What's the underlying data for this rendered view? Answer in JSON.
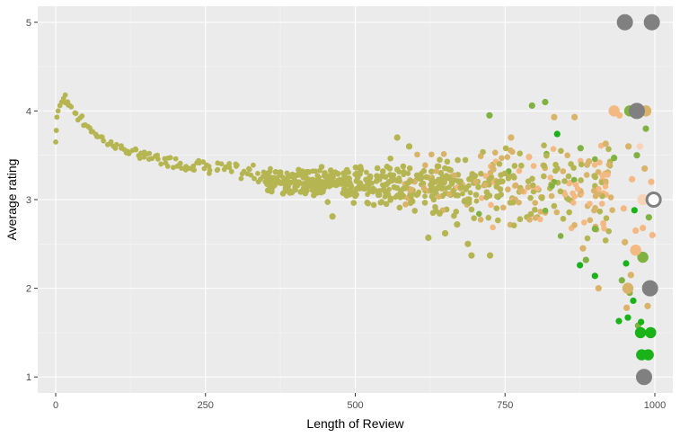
{
  "chart_data": {
    "type": "scatter",
    "title": "",
    "xlabel": "Length of Review",
    "ylabel": "Average rating",
    "xlim": [
      -30,
      1030
    ],
    "ylim": [
      0.82,
      5.18
    ],
    "x_ticks": [
      0,
      250,
      500,
      750,
      1000
    ],
    "x_tick_labels": [
      "0",
      "250",
      "500",
      "750",
      "1000"
    ],
    "y_ticks": [
      1,
      2,
      3,
      4,
      5
    ],
    "y_tick_labels": [
      "1",
      "2",
      "3",
      "4",
      "5"
    ],
    "grid": true,
    "legend": "none",
    "colors": {
      "panel_background": "#ebebeb",
      "grid_major": "#ffffff",
      "olive": "#b5b552",
      "tan": "#d9b368",
      "peach": "#f4b982",
      "light_peach": "#f8d3b7",
      "green": "#19b219",
      "mid_green": "#7fb240",
      "grey": "#808080"
    },
    "trend_points": [
      [
        0,
        3.65
      ],
      [
        1,
        3.78
      ],
      [
        2,
        3.93
      ],
      [
        4,
        4.0
      ],
      [
        7,
        4.06
      ],
      [
        10,
        4.1
      ],
      [
        13,
        4.14
      ],
      [
        16,
        4.18
      ],
      [
        20,
        4.1
      ],
      [
        25,
        4.05
      ],
      [
        32,
        3.99
      ],
      [
        40,
        3.92
      ],
      [
        50,
        3.84
      ],
      [
        60,
        3.78
      ],
      [
        70,
        3.72
      ],
      [
        80,
        3.68
      ],
      [
        90,
        3.64
      ],
      [
        100,
        3.61
      ],
      [
        110,
        3.58
      ],
      [
        120,
        3.55
      ],
      [
        130,
        3.53
      ],
      [
        140,
        3.51
      ],
      [
        150,
        3.49
      ],
      [
        160,
        3.47
      ],
      [
        170,
        3.46
      ],
      [
        180,
        3.44
      ],
      [
        190,
        3.43
      ],
      [
        200,
        3.42
      ],
      [
        210,
        3.41
      ],
      [
        220,
        3.4
      ],
      [
        230,
        3.39
      ],
      [
        240,
        3.38
      ],
      [
        250,
        3.37
      ],
      [
        260,
        3.36
      ],
      [
        270,
        3.35
      ],
      [
        280,
        3.34
      ],
      [
        290,
        3.33
      ],
      [
        300,
        3.32
      ],
      [
        310,
        3.31
      ],
      [
        320,
        3.3
      ],
      [
        330,
        3.3
      ],
      [
        340,
        3.29
      ],
      [
        350,
        3.28
      ],
      [
        360,
        3.27
      ],
      [
        370,
        3.26
      ],
      [
        380,
        3.25
      ],
      [
        390,
        3.25
      ],
      [
        400,
        3.24
      ],
      [
        410,
        3.23
      ],
      [
        420,
        3.23
      ],
      [
        430,
        3.22
      ],
      [
        440,
        3.22
      ],
      [
        450,
        3.21
      ],
      [
        460,
        3.21
      ],
      [
        470,
        3.2
      ],
      [
        480,
        3.2
      ],
      [
        490,
        3.2
      ],
      [
        500,
        3.19
      ],
      [
        510,
        3.19
      ],
      [
        520,
        3.18
      ],
      [
        530,
        3.18
      ],
      [
        540,
        3.18
      ],
      [
        550,
        3.17
      ],
      [
        560,
        3.17
      ],
      [
        570,
        3.17
      ],
      [
        580,
        3.16
      ],
      [
        590,
        3.16
      ],
      [
        600,
        3.16
      ],
      [
        610,
        3.16
      ],
      [
        620,
        3.15
      ],
      [
        630,
        3.15
      ],
      [
        640,
        3.15
      ],
      [
        650,
        3.15
      ],
      [
        660,
        3.14
      ],
      [
        670,
        3.14
      ],
      [
        680,
        3.14
      ],
      [
        690,
        3.14
      ],
      [
        700,
        3.13
      ]
    ],
    "points": [
      {
        "x": 462,
        "y": 2.81,
        "c": "olive",
        "s": 1
      },
      {
        "x": 590,
        "y": 3.6,
        "c": "olive",
        "s": 1
      },
      {
        "x": 570,
        "y": 3.7,
        "c": "olive",
        "s": 1
      },
      {
        "x": 622,
        "y": 2.57,
        "c": "olive",
        "s": 1
      },
      {
        "x": 650,
        "y": 2.62,
        "c": "olive",
        "s": 1
      },
      {
        "x": 670,
        "y": 2.72,
        "c": "olive",
        "s": 1
      },
      {
        "x": 688,
        "y": 2.5,
        "c": "olive",
        "s": 1
      },
      {
        "x": 694,
        "y": 2.37,
        "c": "olive",
        "s": 1
      },
      {
        "x": 725,
        "y": 2.37,
        "c": "olive",
        "s": 1
      },
      {
        "x": 724,
        "y": 3.95,
        "c": "mid_green",
        "s": 1
      },
      {
        "x": 760,
        "y": 3.7,
        "c": "tan",
        "s": 1
      },
      {
        "x": 777,
        "y": 3.1,
        "c": "tan",
        "s": 1
      },
      {
        "x": 790,
        "y": 3.48,
        "c": "peach",
        "s": 1
      },
      {
        "x": 795,
        "y": 4.06,
        "c": "mid_green",
        "s": 1
      },
      {
        "x": 817,
        "y": 4.1,
        "c": "mid_green",
        "s": 1
      },
      {
        "x": 832,
        "y": 3.93,
        "c": "tan",
        "s": 1
      },
      {
        "x": 837,
        "y": 3.74,
        "c": "green",
        "s": 1
      },
      {
        "x": 866,
        "y": 3.93,
        "c": "tan",
        "s": 1
      },
      {
        "x": 876,
        "y": 3.58,
        "c": "mid_green",
        "s": 1
      },
      {
        "x": 890,
        "y": 3.43,
        "c": "tan",
        "s": 1
      },
      {
        "x": 880,
        "y": 2.45,
        "c": "tan",
        "s": 1
      },
      {
        "x": 885,
        "y": 2.32,
        "c": "mid_green",
        "s": 1
      },
      {
        "x": 875,
        "y": 2.26,
        "c": "green",
        "s": 1
      },
      {
        "x": 900,
        "y": 2.14,
        "c": "green",
        "s": 1
      },
      {
        "x": 906,
        "y": 2.0,
        "c": "tan",
        "s": 1
      },
      {
        "x": 900,
        "y": 2.67,
        "c": "mid_green",
        "s": 1
      },
      {
        "x": 913,
        "y": 3.27,
        "c": "peach",
        "s": 1
      },
      {
        "x": 918,
        "y": 3.63,
        "c": "tan",
        "s": 1
      },
      {
        "x": 932,
        "y": 3.47,
        "c": "mid_green",
        "s": 1
      },
      {
        "x": 940,
        "y": 1.63,
        "c": "green",
        "s": 1
      },
      {
        "x": 941,
        "y": 3.95,
        "c": "peach",
        "s": 1
      },
      {
        "x": 945,
        "y": 2.09,
        "c": "mid_green",
        "s": 1
      },
      {
        "x": 948,
        "y": 2.9,
        "c": "peach",
        "s": 1
      },
      {
        "x": 950,
        "y": 2.52,
        "c": "tan",
        "s": 1
      },
      {
        "x": 952,
        "y": 2.28,
        "c": "green",
        "s": 1
      },
      {
        "x": 953,
        "y": 1.78,
        "c": "tan",
        "s": 1
      },
      {
        "x": 955,
        "y": 1.67,
        "c": "green",
        "s": 1
      },
      {
        "x": 956,
        "y": 3.6,
        "c": "tan",
        "s": 1
      },
      {
        "x": 958,
        "y": 1.95,
        "c": "mid_green",
        "s": 1
      },
      {
        "x": 960,
        "y": 2.15,
        "c": "tan",
        "s": 1
      },
      {
        "x": 962,
        "y": 3.23,
        "c": "peach",
        "s": 1
      },
      {
        "x": 964,
        "y": 1.86,
        "c": "green",
        "s": 1
      },
      {
        "x": 966,
        "y": 2.88,
        "c": "green",
        "s": 1
      },
      {
        "x": 968,
        "y": 2.65,
        "c": "peach",
        "s": 1
      },
      {
        "x": 970,
        "y": 3.5,
        "c": "mid_green",
        "s": 1
      },
      {
        "x": 972,
        "y": 1.58,
        "c": "mid_green",
        "s": 1
      },
      {
        "x": 975,
        "y": 3.6,
        "c": "light_peach",
        "s": 1
      },
      {
        "x": 977,
        "y": 1.62,
        "c": "green",
        "s": 1
      },
      {
        "x": 980,
        "y": 2.68,
        "c": "peach",
        "s": 1
      },
      {
        "x": 983,
        "y": 3.35,
        "c": "tan",
        "s": 1
      },
      {
        "x": 985,
        "y": 3.8,
        "c": "mid_green",
        "s": 1
      },
      {
        "x": 988,
        "y": 1.8,
        "c": "tan",
        "s": 1
      },
      {
        "x": 990,
        "y": 2.8,
        "c": "mid_green",
        "s": 1
      },
      {
        "x": 994,
        "y": 3.2,
        "c": "peach",
        "s": 1
      },
      {
        "x": 996,
        "y": 2.6,
        "c": "peach",
        "s": 1
      },
      {
        "x": 932,
        "y": 4.0,
        "c": "peach",
        "s": 2
      },
      {
        "x": 958,
        "y": 4.0,
        "c": "mid_green",
        "s": 2
      },
      {
        "x": 985,
        "y": 4.0,
        "c": "tan",
        "s": 2
      },
      {
        "x": 955,
        "y": 2.0,
        "c": "tan",
        "s": 2
      },
      {
        "x": 980,
        "y": 2.35,
        "c": "mid_green",
        "s": 2
      },
      {
        "x": 968,
        "y": 2.43,
        "c": "peach",
        "s": 2
      },
      {
        "x": 980,
        "y": 3.0,
        "c": "light_peach",
        "s": 2
      },
      {
        "x": 976,
        "y": 1.5,
        "c": "green",
        "s": 2
      },
      {
        "x": 993,
        "y": 1.5,
        "c": "green",
        "s": 2
      },
      {
        "x": 978,
        "y": 1.25,
        "c": "green",
        "s": 2
      },
      {
        "x": 989,
        "y": 1.25,
        "c": "green",
        "s": 2
      },
      {
        "x": 950,
        "y": 5.0,
        "c": "grey",
        "s": 3
      },
      {
        "x": 995,
        "y": 5.0,
        "c": "grey",
        "s": 3
      },
      {
        "x": 970,
        "y": 4.0,
        "c": "grey",
        "s": 3
      },
      {
        "x": 992,
        "y": 2.0,
        "c": "grey",
        "s": 3
      },
      {
        "x": 982,
        "y": 1.0,
        "c": "grey",
        "s": 3
      },
      {
        "x": 998,
        "y": 3.0,
        "c": "grey",
        "s": 3,
        "hollow": true
      }
    ]
  }
}
